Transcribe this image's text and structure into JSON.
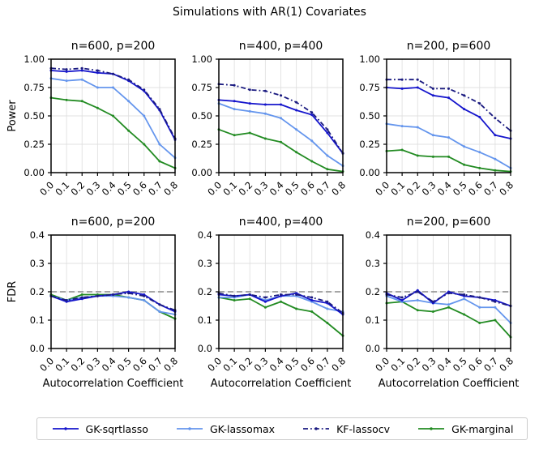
{
  "title": "Simulations with AR(1) Covariates",
  "xlabel": "Autocorrelation Coefficient",
  "legend": {
    "items": [
      {
        "label": "GK-sqrtlasso",
        "key": "GK-sqrtlasso"
      },
      {
        "label": "GK-lassomax",
        "key": "GK-lassomax"
      },
      {
        "label": "KF-lassocv",
        "key": "KF-lassocv"
      },
      {
        "label": "GK-marginal",
        "key": "GK-marginal"
      }
    ]
  },
  "series_styles": {
    "GK-sqrtlasso": {
      "color": "#1515cc",
      "dashdot": false
    },
    "GK-lassomax": {
      "color": "#6495ed",
      "dashdot": false
    },
    "KF-lassocv": {
      "color": "#1a1a80",
      "dashdot": true
    },
    "GK-marginal": {
      "color": "#228b22",
      "dashdot": false
    }
  },
  "threshold_color": "#999999",
  "grid_color": "#e0e0e0",
  "chart_data": [
    {
      "type": "line",
      "title": "n=600, p=200",
      "ylabel": "Power",
      "x": [
        0.0,
        0.1,
        0.2,
        0.3,
        0.4,
        0.5,
        0.6,
        0.7,
        0.8
      ],
      "x_ticklabels": [
        "0.0",
        "0.1",
        "0.2",
        "0.3",
        "0.4",
        "0.5",
        "0.6",
        "0.7",
        "0.8"
      ],
      "ylim": [
        0.0,
        1.0
      ],
      "ytick_values": [
        0.0,
        0.25,
        0.5,
        0.75,
        1.0
      ],
      "ytick_labels": [
        "0.00",
        "0.25",
        "0.50",
        "0.75",
        "1.00"
      ],
      "grid": true,
      "hline": null,
      "series": [
        {
          "name": "GK-sqrtlasso",
          "values": [
            0.9,
            0.89,
            0.9,
            0.88,
            0.87,
            0.81,
            0.72,
            0.55,
            0.29
          ]
        },
        {
          "name": "GK-lassomax",
          "values": [
            0.83,
            0.81,
            0.82,
            0.75,
            0.75,
            0.63,
            0.5,
            0.25,
            0.13
          ]
        },
        {
          "name": "KF-lassocv",
          "values": [
            0.92,
            0.91,
            0.92,
            0.9,
            0.87,
            0.82,
            0.73,
            0.56,
            0.3
          ]
        },
        {
          "name": "GK-marginal",
          "values": [
            0.66,
            0.64,
            0.63,
            0.57,
            0.5,
            0.37,
            0.25,
            0.1,
            0.04
          ]
        }
      ]
    },
    {
      "type": "line",
      "title": "n=400, p=400",
      "ylabel": "",
      "x": [
        0.0,
        0.1,
        0.2,
        0.3,
        0.4,
        0.5,
        0.6,
        0.7,
        0.8
      ],
      "x_ticklabels": [
        "0.0",
        "0.1",
        "0.2",
        "0.3",
        "0.4",
        "0.5",
        "0.6",
        "0.7",
        "0.8"
      ],
      "ylim": [
        0.0,
        1.0
      ],
      "ytick_values": [
        0.0,
        0.25,
        0.5,
        0.75,
        1.0
      ],
      "ytick_labels": [
        "0.00",
        "0.25",
        "0.50",
        "0.75",
        "1.00"
      ],
      "grid": true,
      "hline": null,
      "series": [
        {
          "name": "GK-sqrtlasso",
          "values": [
            0.64,
            0.63,
            0.61,
            0.6,
            0.6,
            0.55,
            0.51,
            0.35,
            0.17
          ]
        },
        {
          "name": "GK-lassomax",
          "values": [
            0.61,
            0.56,
            0.54,
            0.52,
            0.48,
            0.38,
            0.28,
            0.15,
            0.06
          ]
        },
        {
          "name": "KF-lassocv",
          "values": [
            0.78,
            0.77,
            0.73,
            0.72,
            0.68,
            0.62,
            0.53,
            0.38,
            0.17
          ]
        },
        {
          "name": "GK-marginal",
          "values": [
            0.38,
            0.33,
            0.35,
            0.3,
            0.27,
            0.18,
            0.1,
            0.03,
            0.01
          ]
        }
      ]
    },
    {
      "type": "line",
      "title": "n=200, p=600",
      "ylabel": "",
      "x": [
        0.0,
        0.1,
        0.2,
        0.3,
        0.4,
        0.5,
        0.6,
        0.7,
        0.8
      ],
      "x_ticklabels": [
        "0.0",
        "0.1",
        "0.2",
        "0.3",
        "0.4",
        "0.5",
        "0.6",
        "0.7",
        "0.8"
      ],
      "ylim": [
        0.0,
        1.0
      ],
      "ytick_values": [
        0.0,
        0.25,
        0.5,
        0.75,
        1.0
      ],
      "ytick_labels": [
        "0.00",
        "0.25",
        "0.50",
        "0.75",
        "1.00"
      ],
      "grid": true,
      "hline": null,
      "series": [
        {
          "name": "GK-sqrtlasso",
          "values": [
            0.75,
            0.74,
            0.75,
            0.68,
            0.66,
            0.56,
            0.49,
            0.33,
            0.3
          ]
        },
        {
          "name": "GK-lassomax",
          "values": [
            0.43,
            0.41,
            0.4,
            0.33,
            0.31,
            0.23,
            0.18,
            0.12,
            0.04
          ]
        },
        {
          "name": "KF-lassocv",
          "values": [
            0.82,
            0.82,
            0.82,
            0.74,
            0.74,
            0.68,
            0.61,
            0.48,
            0.37
          ]
        },
        {
          "name": "GK-marginal",
          "values": [
            0.19,
            0.2,
            0.15,
            0.14,
            0.14,
            0.07,
            0.04,
            0.02,
            0.01
          ]
        }
      ]
    },
    {
      "type": "line",
      "title": "n=600, p=200",
      "ylabel": "FDR",
      "xlabel": "Autocorrelation Coefficient",
      "x": [
        0.0,
        0.1,
        0.2,
        0.3,
        0.4,
        0.5,
        0.6,
        0.7,
        0.8
      ],
      "x_ticklabels": [
        "0.0",
        "0.1",
        "0.2",
        "0.3",
        "0.4",
        "0.5",
        "0.6",
        "0.7",
        "0.8"
      ],
      "ylim": [
        0.0,
        0.4
      ],
      "ytick_values": [
        0.0,
        0.1,
        0.2,
        0.3,
        0.4
      ],
      "ytick_labels": [
        "0.0",
        "0.1",
        "0.2",
        "0.3",
        "0.4"
      ],
      "grid": true,
      "hline": 0.2,
      "series": [
        {
          "name": "GK-sqrtlasso",
          "values": [
            0.185,
            0.165,
            0.175,
            0.185,
            0.19,
            0.2,
            0.19,
            0.155,
            0.13
          ]
        },
        {
          "name": "GK-lassomax",
          "values": [
            0.185,
            0.17,
            0.18,
            0.185,
            0.185,
            0.18,
            0.17,
            0.13,
            0.12
          ]
        },
        {
          "name": "KF-lassocv",
          "values": [
            0.185,
            0.17,
            0.18,
            0.185,
            0.19,
            0.195,
            0.185,
            0.155,
            0.135
          ]
        },
        {
          "name": "GK-marginal",
          "values": [
            0.19,
            0.17,
            0.19,
            0.19,
            0.19,
            0.18,
            0.17,
            0.13,
            0.105
          ]
        }
      ]
    },
    {
      "type": "line",
      "title": "n=400, p=400",
      "ylabel": "",
      "xlabel": "Autocorrelation Coefficient",
      "x": [
        0.0,
        0.1,
        0.2,
        0.3,
        0.4,
        0.5,
        0.6,
        0.7,
        0.8
      ],
      "x_ticklabels": [
        "0.0",
        "0.1",
        "0.2",
        "0.3",
        "0.4",
        "0.5",
        "0.6",
        "0.7",
        "0.8"
      ],
      "ylim": [
        0.0,
        0.4
      ],
      "ytick_values": [
        0.0,
        0.1,
        0.2,
        0.3,
        0.4
      ],
      "ytick_labels": [
        "0.0",
        "0.1",
        "0.2",
        "0.3",
        "0.4"
      ],
      "grid": true,
      "hline": 0.2,
      "series": [
        {
          "name": "GK-sqrtlasso",
          "values": [
            0.19,
            0.185,
            0.19,
            0.165,
            0.185,
            0.195,
            0.17,
            0.16,
            0.12
          ]
        },
        {
          "name": "GK-lassomax",
          "values": [
            0.18,
            0.18,
            0.19,
            0.17,
            0.185,
            0.185,
            0.165,
            0.14,
            0.13
          ]
        },
        {
          "name": "KF-lassocv",
          "values": [
            0.195,
            0.185,
            0.19,
            0.18,
            0.19,
            0.19,
            0.18,
            0.165,
            0.125
          ]
        },
        {
          "name": "GK-marginal",
          "values": [
            0.18,
            0.17,
            0.175,
            0.145,
            0.165,
            0.14,
            0.13,
            0.09,
            0.045
          ]
        }
      ]
    },
    {
      "type": "line",
      "title": "n=200, p=600",
      "ylabel": "",
      "xlabel": "Autocorrelation Coefficient",
      "x": [
        0.0,
        0.1,
        0.2,
        0.3,
        0.4,
        0.5,
        0.6,
        0.7,
        0.8
      ],
      "x_ticklabels": [
        "0.0",
        "0.1",
        "0.2",
        "0.3",
        "0.4",
        "0.5",
        "0.6",
        "0.7",
        "0.8"
      ],
      "ylim": [
        0.0,
        0.4
      ],
      "ytick_values": [
        0.0,
        0.1,
        0.2,
        0.3,
        0.4
      ],
      "ytick_labels": [
        "0.0",
        "0.1",
        "0.2",
        "0.3",
        "0.4"
      ],
      "grid": true,
      "hline": 0.2,
      "series": [
        {
          "name": "GK-sqrtlasso",
          "values": [
            0.195,
            0.17,
            0.205,
            0.16,
            0.2,
            0.185,
            0.18,
            0.17,
            0.15
          ]
        },
        {
          "name": "GK-lassomax",
          "values": [
            0.185,
            0.165,
            0.17,
            0.16,
            0.155,
            0.175,
            0.145,
            0.145,
            0.09
          ]
        },
        {
          "name": "KF-lassocv",
          "values": [
            0.19,
            0.18,
            0.2,
            0.165,
            0.195,
            0.19,
            0.18,
            0.165,
            0.15
          ]
        },
        {
          "name": "GK-marginal",
          "values": [
            0.16,
            0.165,
            0.135,
            0.13,
            0.145,
            0.12,
            0.09,
            0.1,
            0.04
          ]
        }
      ]
    }
  ]
}
